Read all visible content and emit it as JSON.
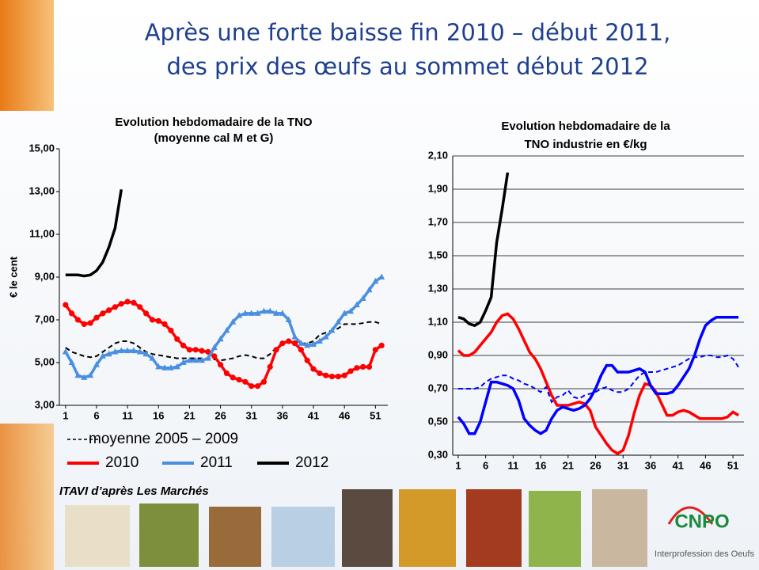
{
  "slide": {
    "title": [
      "Après une forte baisse fin 2010 – début 2011,",
      "des prix des œufs au sommet début 2012"
    ],
    "source": "ITAVI d’après Les Marchés",
    "logo": {
      "name": "CNPO",
      "subtitle": "Interprofession des Oeufs"
    }
  },
  "chart_data": [
    {
      "type": "line",
      "title": [
        "Evolution hebdomadaire de la TNO",
        "(moyenne cal M et G)"
      ],
      "y_label": "€ le cent",
      "x": [
        1,
        2,
        3,
        4,
        5,
        6,
        7,
        8,
        9,
        10,
        11,
        12,
        13,
        14,
        15,
        16,
        17,
        18,
        19,
        20,
        21,
        22,
        23,
        24,
        25,
        26,
        27,
        28,
        29,
        30,
        31,
        32,
        33,
        34,
        35,
        36,
        37,
        38,
        39,
        40,
        41,
        42,
        43,
        44,
        45,
        46,
        47,
        48,
        49,
        50,
        51,
        52
      ],
      "xlim": [
        0,
        53
      ],
      "xticks": [
        1,
        6,
        11,
        16,
        21,
        26,
        31,
        36,
        41,
        46,
        51
      ],
      "ylim": [
        3,
        15
      ],
      "yticks": [
        {
          "value": 3,
          "label": "3,00"
        },
        {
          "value": 5,
          "label": "5,00"
        },
        {
          "value": 7,
          "label": "7,00"
        },
        {
          "value": 9,
          "label": "9,00"
        },
        {
          "value": 11,
          "label": "11,00"
        },
        {
          "value": 13,
          "label": "13,00"
        },
        {
          "value": 15,
          "label": "15,00"
        }
      ],
      "grid": false,
      "legend": "bottom-left",
      "series": [
        {
          "name": "moyenne 2005 – 2009",
          "color": "#000000",
          "linestyle": "dashed",
          "marker": "none",
          "values": [
            5.7,
            5.5,
            5.4,
            5.3,
            5.25,
            5.3,
            5.5,
            5.7,
            5.9,
            6.0,
            6.0,
            5.9,
            5.7,
            5.5,
            5.4,
            5.35,
            5.3,
            5.25,
            5.2,
            5.2,
            5.2,
            5.2,
            5.2,
            5.2,
            5.15,
            5.1,
            5.15,
            5.2,
            5.3,
            5.35,
            5.3,
            5.2,
            5.2,
            5.4,
            5.7,
            5.9,
            6.0,
            6.0,
            5.9,
            5.9,
            6.0,
            6.3,
            6.4,
            6.5,
            6.6,
            6.8,
            6.8,
            6.8,
            6.85,
            6.9,
            6.9,
            6.8
          ]
        },
        {
          "name": "2010",
          "color": "#ff0000",
          "linestyle": "solid",
          "marker": "circle",
          "values": [
            7.7,
            7.3,
            7.0,
            6.8,
            6.85,
            7.1,
            7.3,
            7.45,
            7.6,
            7.75,
            7.85,
            7.8,
            7.6,
            7.3,
            7.0,
            6.95,
            6.8,
            6.5,
            6.1,
            5.8,
            5.6,
            5.6,
            5.55,
            5.5,
            5.3,
            4.9,
            4.5,
            4.3,
            4.2,
            4.1,
            3.9,
            3.9,
            4.1,
            4.8,
            5.6,
            5.9,
            6.0,
            5.9,
            5.6,
            5.1,
            4.7,
            4.5,
            4.4,
            4.35,
            4.35,
            4.4,
            4.6,
            4.75,
            4.8,
            4.8,
            5.6,
            5.8
          ]
        },
        {
          "name": "2011",
          "color": "#4a8fe0",
          "linestyle": "solid",
          "marker": "triangle",
          "values": [
            5.5,
            5.0,
            4.4,
            4.3,
            4.4,
            4.9,
            5.3,
            5.4,
            5.5,
            5.55,
            5.55,
            5.55,
            5.5,
            5.4,
            5.2,
            4.8,
            4.75,
            4.75,
            4.8,
            5.0,
            5.1,
            5.1,
            5.1,
            5.2,
            5.7,
            6.1,
            6.5,
            6.9,
            7.2,
            7.3,
            7.3,
            7.3,
            7.4,
            7.4,
            7.3,
            7.3,
            7.0,
            6.2,
            5.9,
            5.8,
            5.85,
            6.0,
            6.2,
            6.5,
            6.9,
            7.3,
            7.4,
            7.7,
            8.0,
            8.4,
            8.8,
            9.0
          ]
        },
        {
          "name": "2012",
          "color": "#000000",
          "linestyle": "solid",
          "marker": "none",
          "values": [
            9.1,
            9.1,
            9.1,
            9.05,
            9.1,
            9.3,
            9.7,
            10.4,
            11.3,
            13.1,
            null,
            null,
            null,
            null,
            null,
            null,
            null,
            null,
            null,
            null,
            null,
            null,
            null,
            null,
            null,
            null,
            null,
            null,
            null,
            null,
            null,
            null,
            null,
            null,
            null,
            null,
            null,
            null,
            null,
            null,
            null,
            null,
            null,
            null,
            null,
            null,
            null,
            null,
            null,
            null,
            null,
            null
          ]
        }
      ]
    },
    {
      "type": "line",
      "title": [
        "Evolution hebdomadaire de la",
        "TNO industrie en €/kg"
      ],
      "x": [
        1,
        2,
        3,
        4,
        5,
        6,
        7,
        8,
        9,
        10,
        11,
        12,
        13,
        14,
        15,
        16,
        17,
        18,
        19,
        20,
        21,
        22,
        23,
        24,
        25,
        26,
        27,
        28,
        29,
        30,
        31,
        32,
        33,
        34,
        35,
        36,
        37,
        38,
        39,
        40,
        41,
        42,
        43,
        44,
        45,
        46,
        47,
        48,
        49,
        50,
        51,
        52
      ],
      "xlim": [
        0,
        53
      ],
      "xticks": [
        1,
        6,
        11,
        16,
        21,
        26,
        31,
        36,
        41,
        46,
        51
      ],
      "ylim": [
        0.3,
        2.1
      ],
      "yticks": [
        {
          "value": 0.3,
          "label": "0,30"
        },
        {
          "value": 0.5,
          "label": "0,50"
        },
        {
          "value": 0.7,
          "label": "0,70"
        },
        {
          "value": 0.9,
          "label": "0,90"
        },
        {
          "value": 1.1,
          "label": "1,10"
        },
        {
          "value": 1.3,
          "label": "1,30"
        },
        {
          "value": 1.5,
          "label": "1,50"
        },
        {
          "value": 1.7,
          "label": "1,70"
        },
        {
          "value": 1.9,
          "label": "1,90"
        },
        {
          "value": 2.1,
          "label": "2,10"
        }
      ],
      "grid": true,
      "series": [
        {
          "color": "#0000ff",
          "linestyle": "dashed",
          "marker": "none",
          "values": [
            0.7,
            0.7,
            0.7,
            0.7,
            0.71,
            0.74,
            0.76,
            0.77,
            0.78,
            0.78,
            0.76,
            0.75,
            0.73,
            0.72,
            0.7,
            0.68,
            0.71,
            0.62,
            0.65,
            0.66,
            0.69,
            0.65,
            0.64,
            0.66,
            0.67,
            0.68,
            0.7,
            0.71,
            0.69,
            0.68,
            0.68,
            0.7,
            0.74,
            0.78,
            0.8,
            0.8,
            0.8,
            0.81,
            0.82,
            0.83,
            0.84,
            0.86,
            0.88,
            0.89,
            0.89,
            0.9,
            0.9,
            0.89,
            0.89,
            0.9,
            0.88,
            0.83
          ]
        },
        {
          "color": "#ff0000",
          "linestyle": "solid",
          "marker": "none",
          "values": [
            0.93,
            0.9,
            0.9,
            0.92,
            0.96,
            1.0,
            1.04,
            1.1,
            1.14,
            1.15,
            1.12,
            1.06,
            0.99,
            0.92,
            0.88,
            0.82,
            0.74,
            0.66,
            0.6,
            0.6,
            0.6,
            0.61,
            0.62,
            0.61,
            0.57,
            0.47,
            0.42,
            0.37,
            0.33,
            0.31,
            0.33,
            0.42,
            0.55,
            0.66,
            0.73,
            0.72,
            0.68,
            0.61,
            0.54,
            0.54,
            0.56,
            0.57,
            0.56,
            0.54,
            0.52,
            0.52,
            0.52,
            0.52,
            0.52,
            0.53,
            0.56,
            0.54
          ]
        },
        {
          "color": "#0000ff",
          "linestyle": "solid",
          "marker": "none",
          "values": [
            0.53,
            0.49,
            0.43,
            0.43,
            0.5,
            0.62,
            0.74,
            0.74,
            0.73,
            0.72,
            0.7,
            0.63,
            0.52,
            0.48,
            0.45,
            0.43,
            0.45,
            0.52,
            0.57,
            0.59,
            0.58,
            0.57,
            0.58,
            0.6,
            0.64,
            0.7,
            0.78,
            0.84,
            0.84,
            0.8,
            0.8,
            0.8,
            0.81,
            0.82,
            0.8,
            0.72,
            0.67,
            0.67,
            0.67,
            0.68,
            0.72,
            0.77,
            0.82,
            0.9,
            1.0,
            1.08,
            1.11,
            1.13,
            1.13,
            1.13,
            1.13,
            1.13
          ]
        },
        {
          "color": "#000000",
          "linestyle": "solid",
          "marker": "none",
          "values": [
            1.13,
            1.12,
            1.09,
            1.08,
            1.1,
            1.17,
            1.25,
            1.58,
            1.78,
            2.0,
            null,
            null,
            null,
            null,
            null,
            null,
            null,
            null,
            null,
            null,
            null,
            null,
            null,
            null,
            null,
            null,
            null,
            null,
            null,
            null,
            null,
            null,
            null,
            null,
            null,
            null,
            null,
            null,
            null,
            null,
            null,
            null,
            null,
            null,
            null,
            null,
            null,
            null,
            null,
            null,
            null,
            null
          ]
        }
      ]
    }
  ]
}
